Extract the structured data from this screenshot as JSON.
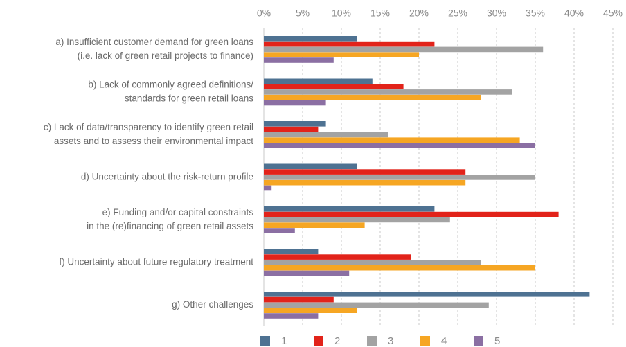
{
  "chart_data": {
    "type": "bar",
    "orientation": "horizontal",
    "categories": [
      [
        "a) Insufficient customer demand for green loans",
        "(i.e. lack of green retail projects to finance)"
      ],
      [
        "b) Lack of commonly agreed definitions/",
        "standards for green retail loans"
      ],
      [
        "c) Lack of data/transparency to identify green retail",
        "assets and to assess their environmental impact"
      ],
      [
        "d) Uncertainty about the risk-return profile"
      ],
      [
        "e) Funding and/or capital constraints",
        "in the (re)financing of green retail assets"
      ],
      [
        "f) Uncertainty about future regulatory treatment"
      ],
      [
        "g) Other challenges"
      ]
    ],
    "series": [
      {
        "name": "1",
        "color": "#4e7292",
        "values": [
          12,
          14,
          8,
          12,
          22,
          7,
          42
        ]
      },
      {
        "name": "2",
        "color": "#e2231a",
        "values": [
          22,
          18,
          7,
          26,
          38,
          19,
          9
        ]
      },
      {
        "name": "3",
        "color": "#a3a3a3",
        "values": [
          36,
          32,
          16,
          35,
          24,
          28,
          29
        ]
      },
      {
        "name": "4",
        "color": "#f6a623",
        "values": [
          20,
          28,
          33,
          26,
          13,
          35,
          12
        ]
      },
      {
        "name": "5",
        "color": "#8b6fa3",
        "values": [
          9,
          8,
          35,
          1,
          4,
          11,
          7
        ]
      }
    ],
    "xlim": [
      0,
      45
    ],
    "xticks": [
      {
        "value": 0,
        "label": "0%"
      },
      {
        "value": 5,
        "label": "5%"
      },
      {
        "value": 10,
        "label": "10%"
      },
      {
        "value": 15,
        "label": "15%"
      },
      {
        "value": 20,
        "label": "20%"
      },
      {
        "value": 25,
        "label": "25%"
      },
      {
        "value": 30,
        "label": "30%"
      },
      {
        "value": 35,
        "label": "35%"
      },
      {
        "value": 40,
        "label": "40%"
      },
      {
        "value": 45,
        "label": "45%"
      }
    ],
    "grid": true,
    "legend": "bottom"
  }
}
